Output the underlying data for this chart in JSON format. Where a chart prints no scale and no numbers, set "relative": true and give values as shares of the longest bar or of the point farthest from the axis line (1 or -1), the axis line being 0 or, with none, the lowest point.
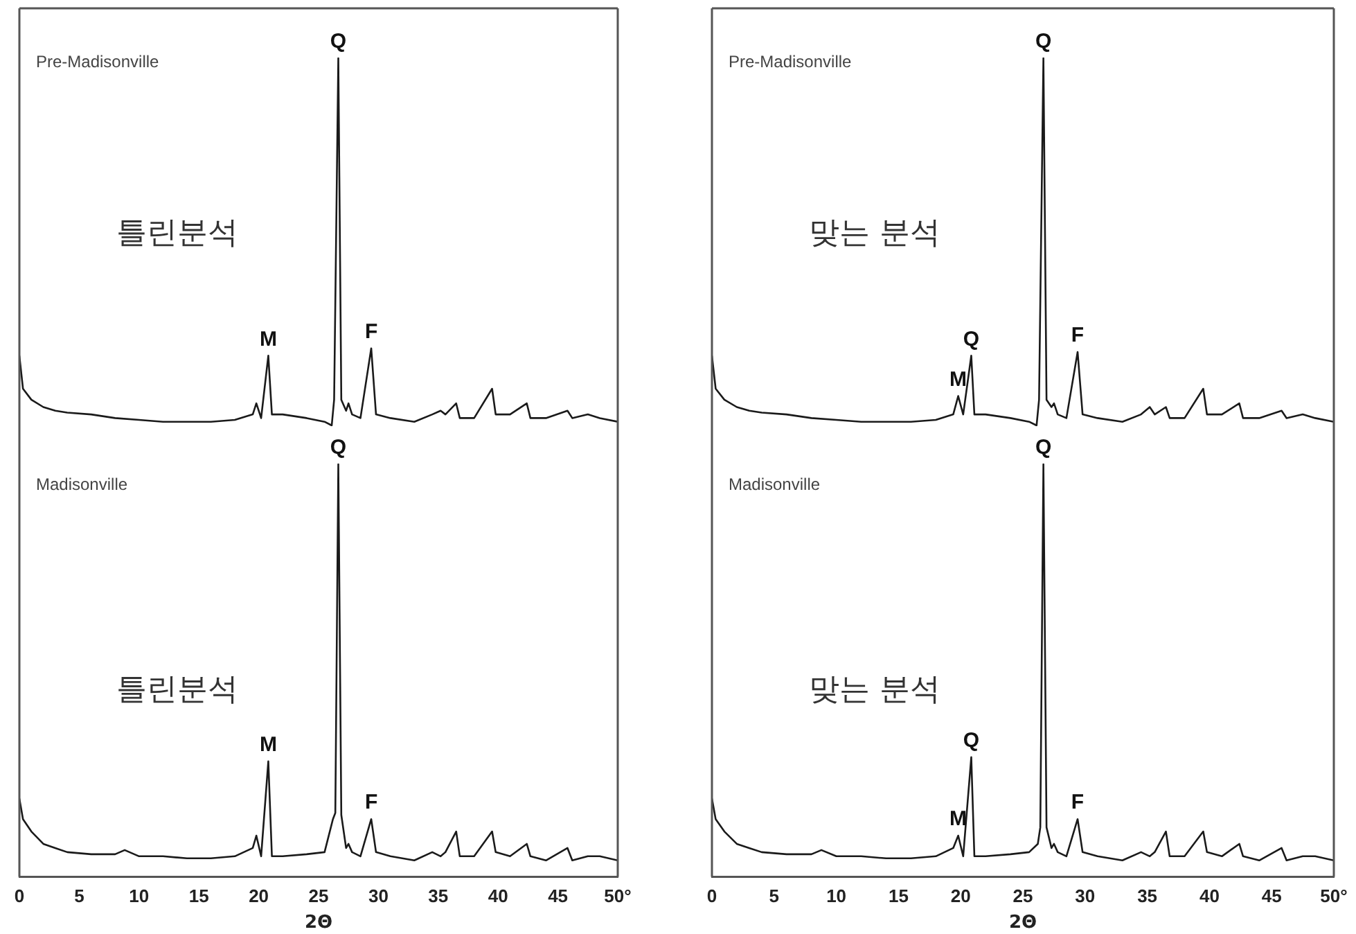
{
  "chart_data": [
    {
      "type": "line",
      "relative": true,
      "xlim": [
        0,
        50
      ],
      "tick_labels": false,
      "grid": false,
      "legend": false,
      "marker": "none",
      "line_style": "solid",
      "x": [
        0,
        0.3,
        1,
        2,
        3,
        4,
        6,
        8,
        10,
        12,
        14,
        16,
        18,
        19.5,
        19.8,
        20.2,
        20.8,
        21.1,
        22,
        24,
        25.5,
        26.1,
        26.3,
        26.65,
        26.9,
        27.3,
        27.5,
        27.8,
        28.5,
        29.4,
        29.8,
        31,
        33,
        34.5,
        35.2,
        35.6,
        36.5,
        36.8,
        38,
        39.5,
        39.8,
        41,
        42.4,
        42.7,
        44,
        45.8,
        46.2,
        47.5,
        48.5,
        50
      ],
      "series": [
        {
          "name": "Pre-Madisonville",
          "color": "#1a1a1a",
          "values": [
            0.19,
            0.1,
            0.07,
            0.05,
            0.04,
            0.035,
            0.03,
            0.02,
            0.015,
            0.01,
            0.01,
            0.01,
            0.015,
            0.03,
            0.06,
            0.02,
            0.19,
            0.03,
            0.03,
            0.02,
            0.01,
            0,
            0.07,
            1,
            0.07,
            0.04,
            0.06,
            0.03,
            0.02,
            0.21,
            0.03,
            0.02,
            0.01,
            0.03,
            0.04,
            0.03,
            0.06,
            0.02,
            0.02,
            0.1,
            0.03,
            0.03,
            0.06,
            0.02,
            0.02,
            0.04,
            0.02,
            0.03,
            0.02,
            0.01
          ]
        }
      ],
      "annotations": [
        "틀린분석",
        {
          "text": "M",
          "x": 20.8,
          "y": 0.19
        },
        {
          "text": "Q",
          "x": 26.65,
          "y": 1
        },
        {
          "text": "F",
          "x": 29.4,
          "y": 0.21
        }
      ]
    },
    {
      "type": "line",
      "relative": true,
      "xlim": [
        0,
        50
      ],
      "xticks": [
        0,
        5,
        10,
        15,
        20,
        25,
        30,
        35,
        40,
        45,
        {
          "value": 50,
          "label": "50°"
        }
      ],
      "xlabel": "2Θ",
      "grid": false,
      "legend": false,
      "marker": "none",
      "line_style": "solid",
      "x": [
        0,
        0.3,
        1,
        2,
        3,
        4,
        6,
        8,
        8.8,
        10,
        12,
        14,
        16,
        18,
        19.5,
        19.8,
        20.2,
        20.8,
        21.1,
        22,
        24,
        25.5,
        26.2,
        26.4,
        26.65,
        26.9,
        27.3,
        27.5,
        27.8,
        28.5,
        29.4,
        29.8,
        31,
        33,
        34.5,
        35.2,
        35.6,
        36.5,
        36.8,
        38,
        39.5,
        39.8,
        41,
        42.4,
        42.7,
        44,
        45.8,
        46.2,
        47.5,
        48.5,
        50
      ],
      "series": [
        {
          "name": "Madisonville",
          "color": "#1a1a1a",
          "values": [
            0.19,
            0.14,
            0.11,
            0.08,
            0.07,
            0.06,
            0.055,
            0.055,
            0.065,
            0.05,
            0.05,
            0.045,
            0.045,
            0.05,
            0.07,
            0.1,
            0.05,
            0.28,
            0.05,
            0.05,
            0.055,
            0.06,
            0.14,
            0.155,
            1,
            0.15,
            0.07,
            0.08,
            0.06,
            0.05,
            0.14,
            0.06,
            0.05,
            0.04,
            0.06,
            0.05,
            0.06,
            0.11,
            0.05,
            0.05,
            0.11,
            0.06,
            0.05,
            0.08,
            0.05,
            0.04,
            0.07,
            0.04,
            0.05,
            0.05,
            0.04
          ]
        }
      ],
      "annotations": [
        "틀린분석",
        {
          "text": "M",
          "x": 20.8,
          "y": 0.28
        },
        {
          "text": "Q",
          "x": 26.65,
          "y": 1
        },
        {
          "text": "F",
          "x": 29.4,
          "y": 0.14
        }
      ]
    },
    {
      "type": "line",
      "relative": true,
      "xlim": [
        0,
        50
      ],
      "tick_labels": false,
      "grid": false,
      "legend": false,
      "marker": "none",
      "line_style": "solid",
      "x": [
        0,
        0.3,
        1,
        2,
        3,
        4,
        6,
        8,
        10,
        12,
        14,
        16,
        18,
        19.4,
        19.8,
        20.2,
        20.85,
        21.1,
        22,
        24,
        25.5,
        26.1,
        26.3,
        26.65,
        26.9,
        27.3,
        27.5,
        27.8,
        28.5,
        29.4,
        29.8,
        31,
        33,
        34.5,
        35.2,
        35.6,
        36.5,
        36.8,
        38,
        39.5,
        39.8,
        41,
        42.4,
        42.7,
        44,
        45.8,
        46.2,
        47.5,
        48.5,
        50
      ],
      "series": [
        {
          "name": "Pre-Madisonville",
          "color": "#1a1a1a",
          "values": [
            0.19,
            0.1,
            0.07,
            0.05,
            0.04,
            0.035,
            0.03,
            0.02,
            0.015,
            0.01,
            0.01,
            0.01,
            0.015,
            0.03,
            0.08,
            0.03,
            0.19,
            0.03,
            0.03,
            0.02,
            0.01,
            0,
            0.07,
            1,
            0.07,
            0.05,
            0.06,
            0.03,
            0.02,
            0.2,
            0.03,
            0.02,
            0.01,
            0.03,
            0.05,
            0.03,
            0.05,
            0.02,
            0.02,
            0.1,
            0.03,
            0.03,
            0.06,
            0.02,
            0.02,
            0.04,
            0.02,
            0.03,
            0.02,
            0.01
          ]
        }
      ],
      "annotations": [
        "맞는 분석",
        {
          "text": "M",
          "x": 19.8,
          "y": 0.08
        },
        {
          "text": "Q",
          "x": 20.85,
          "y": 0.19
        },
        {
          "text": "Q",
          "x": 26.65,
          "y": 1
        },
        {
          "text": "F",
          "x": 29.4,
          "y": 0.2
        }
      ]
    },
    {
      "type": "line",
      "relative": true,
      "xlim": [
        0,
        50
      ],
      "xticks": [
        0,
        5,
        10,
        15,
        20,
        25,
        30,
        35,
        40,
        45,
        {
          "value": 50,
          "label": "50°"
        }
      ],
      "xlabel": "2Θ",
      "grid": false,
      "legend": false,
      "marker": "none",
      "line_style": "solid",
      "x": [
        0,
        0.3,
        1,
        2,
        3,
        4,
        6,
        8,
        8.8,
        10,
        12,
        14,
        16,
        18,
        19.4,
        19.8,
        20.2,
        20.85,
        21.1,
        22,
        24,
        25.5,
        26.2,
        26.4,
        26.65,
        26.9,
        27.3,
        27.5,
        27.8,
        28.5,
        29.4,
        29.8,
        31,
        33,
        34.5,
        35.2,
        35.6,
        36.5,
        36.8,
        38,
        39.5,
        39.8,
        41,
        42.4,
        42.7,
        44,
        45.8,
        46.2,
        47.5,
        48.5,
        50
      ],
      "series": [
        {
          "name": "Madisonville",
          "color": "#1a1a1a",
          "values": [
            0.19,
            0.14,
            0.11,
            0.08,
            0.07,
            0.06,
            0.055,
            0.055,
            0.065,
            0.05,
            0.05,
            0.045,
            0.045,
            0.05,
            0.07,
            0.1,
            0.05,
            0.29,
            0.05,
            0.05,
            0.055,
            0.06,
            0.08,
            0.12,
            1,
            0.12,
            0.07,
            0.08,
            0.06,
            0.05,
            0.14,
            0.06,
            0.05,
            0.04,
            0.06,
            0.05,
            0.06,
            0.11,
            0.05,
            0.05,
            0.11,
            0.06,
            0.05,
            0.08,
            0.05,
            0.04,
            0.07,
            0.04,
            0.05,
            0.05,
            0.04
          ]
        }
      ],
      "annotations": [
        "맞는 분석",
        {
          "text": "M",
          "x": 19.8,
          "y": 0.1
        },
        {
          "text": "Q",
          "x": 20.85,
          "y": 0.29
        },
        {
          "text": "Q",
          "x": 26.65,
          "y": 1
        },
        {
          "text": "F",
          "x": 29.4,
          "y": 0.14
        }
      ]
    }
  ]
}
